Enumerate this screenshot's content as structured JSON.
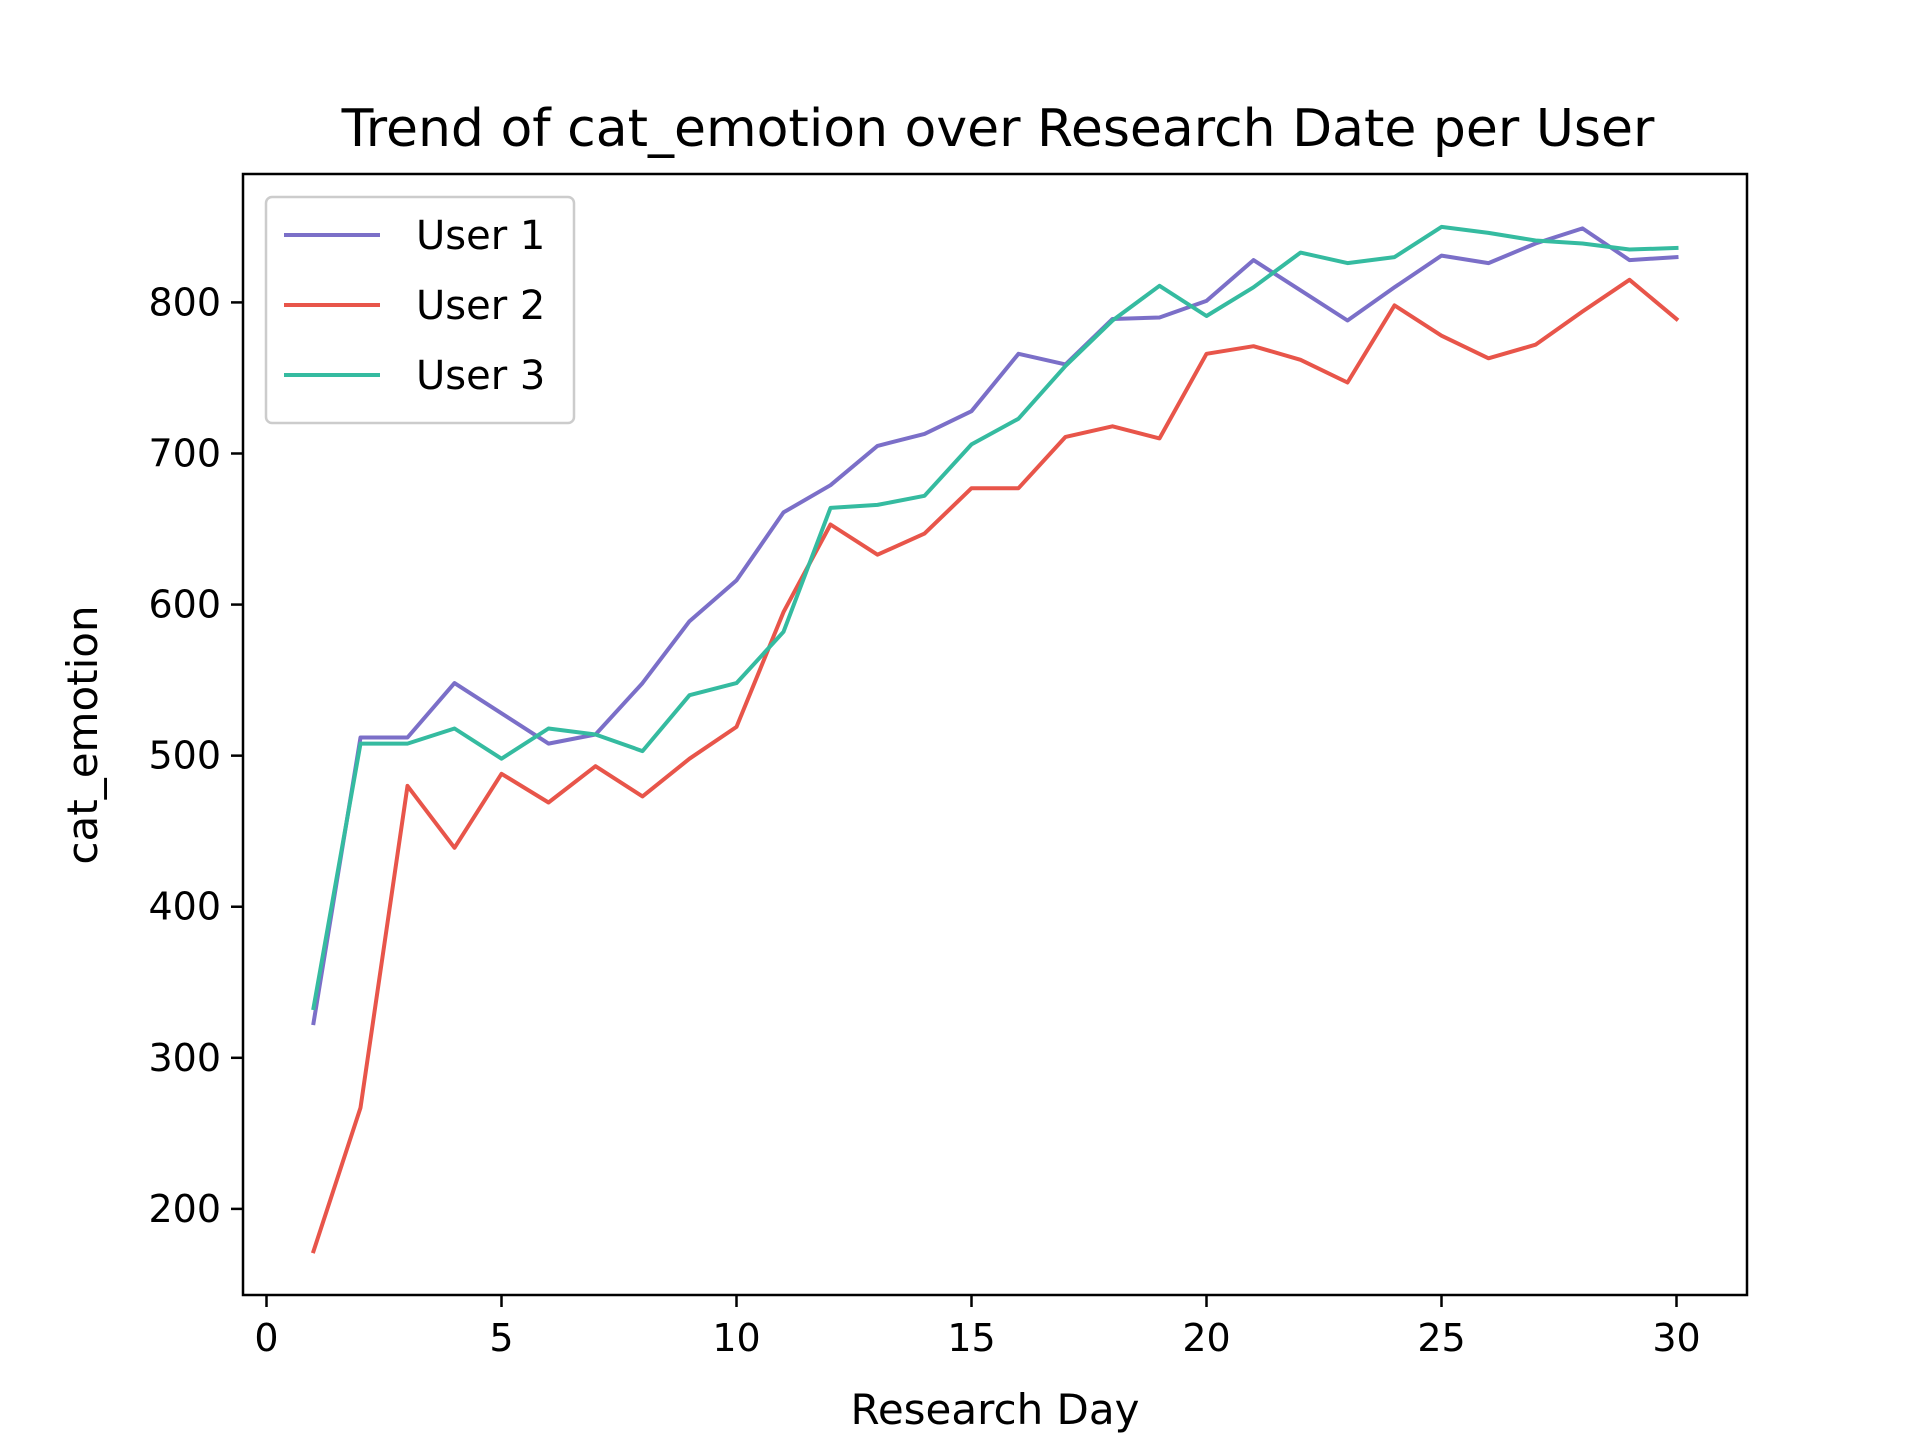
{
  "chart_data": {
    "type": "line",
    "title": "Trend of cat_emotion over Research Date per User",
    "xlabel": "Research Day",
    "ylabel": "cat_emotion",
    "xlim": [
      -0.5,
      31.5
    ],
    "ylim": [
      143,
      885
    ],
    "xticks": [
      0,
      5,
      10,
      15,
      20,
      25,
      30
    ],
    "yticks": [
      200,
      300,
      400,
      500,
      600,
      700,
      800
    ],
    "grid": false,
    "legend_position": "upper-left",
    "x": [
      1,
      2,
      3,
      4,
      5,
      6,
      7,
      8,
      9,
      10,
      11,
      12,
      13,
      14,
      15,
      16,
      17,
      18,
      19,
      20,
      21,
      22,
      23,
      24,
      25,
      26,
      27,
      28,
      29,
      30
    ],
    "series": [
      {
        "name": "User 1",
        "color": "#7b6fc8",
        "values": [
          323,
          512,
          512,
          548,
          528,
          508,
          514,
          548,
          589,
          616,
          661,
          679,
          705,
          713,
          728,
          766,
          759,
          789,
          790,
          801,
          828,
          808,
          788,
          810,
          831,
          826,
          839,
          849,
          828,
          830
        ]
      },
      {
        "name": "User 2",
        "color": "#e8554a",
        "values": [
          172,
          267,
          480,
          439,
          488,
          469,
          493,
          473,
          498,
          519,
          595,
          653,
          633,
          647,
          677,
          677,
          711,
          718,
          710,
          766,
          771,
          762,
          747,
          798,
          778,
          763,
          772,
          794,
          815,
          789
        ]
      },
      {
        "name": "User 3",
        "color": "#35bba0",
        "values": [
          333,
          508,
          508,
          518,
          498,
          518,
          514,
          503,
          540,
          548,
          582,
          664,
          666,
          672,
          706,
          723,
          758,
          788,
          811,
          791,
          810,
          833,
          826,
          830,
          850,
          846,
          841,
          839,
          835,
          836
        ]
      }
    ]
  }
}
